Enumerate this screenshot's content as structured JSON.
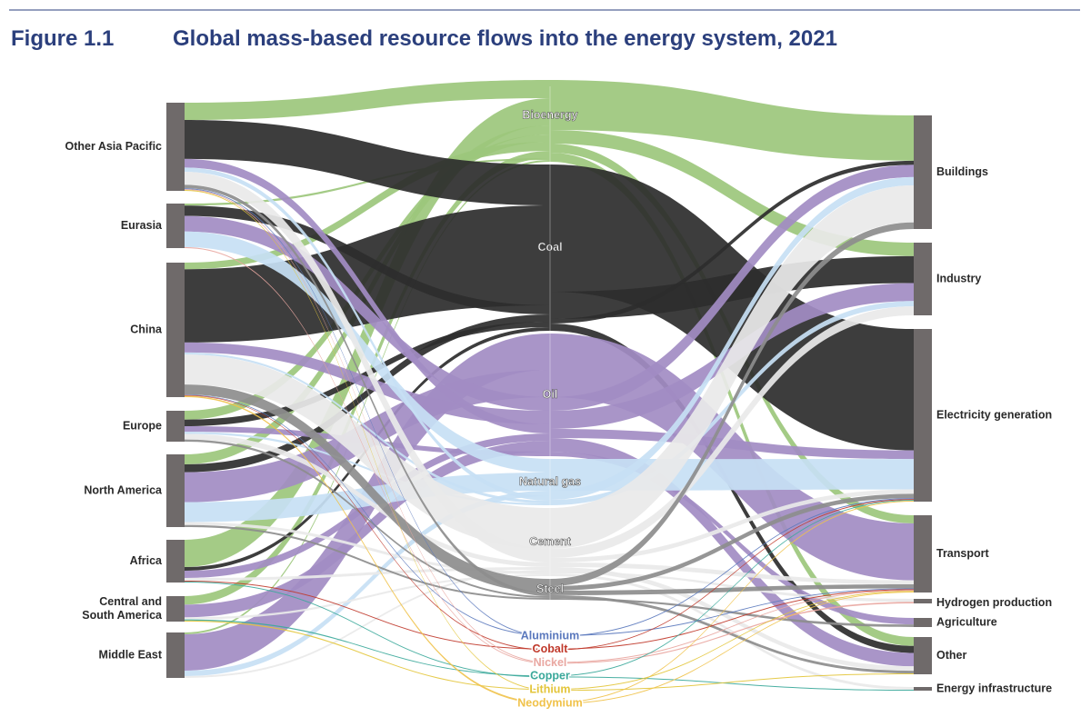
{
  "header": {
    "figure": "Figure 1.1",
    "title": "Global mass-based resource flows into the energy system, 2021"
  },
  "nodes": {
    "sources": [
      "Other Asia Pacific",
      "Eurasia",
      "China",
      "Europe",
      "North America",
      "Africa",
      [
        "Central and",
        "South America"
      ],
      "Middle East"
    ],
    "resources": [
      "Bioenergy",
      "Coal",
      "Oil",
      "Natural gas",
      "Cement",
      "Steel",
      "Aluminium",
      "Cobalt",
      "Nickel",
      "Copper",
      "Lithium",
      "Neodymium"
    ],
    "sectors": [
      "Buildings",
      "Industry",
      "Electricity generation",
      "Transport",
      "Hydrogen production",
      "Agriculture",
      "Other",
      "Energy infrastructure"
    ]
  }
}
